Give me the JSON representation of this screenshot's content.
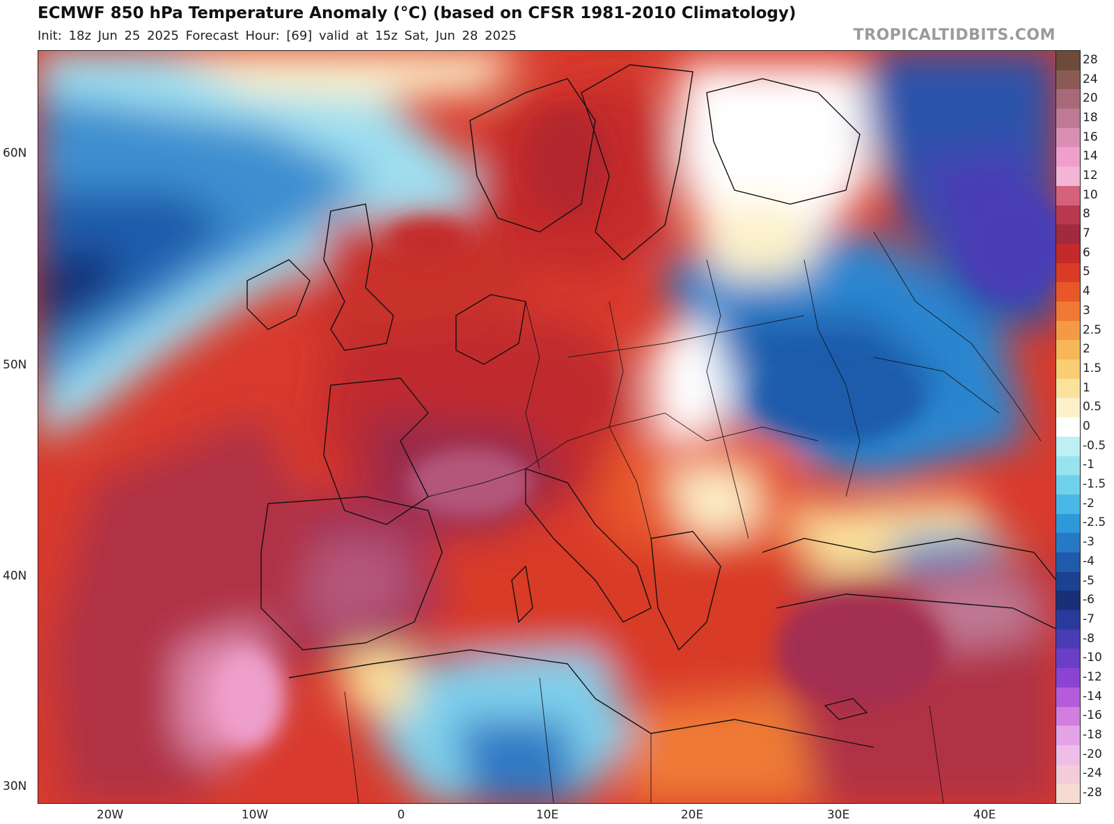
{
  "header": {
    "title": "ECMWF 850 hPa Temperature Anomaly (°C) (based on CFSR 1981-2010 Climatology)",
    "subtitle": "Init: 18z Jun 25 2025   Forecast Hour: [69]   valid at 15z Sat, Jun 28 2025",
    "brand": "TROPICALTIDBITS.COM"
  },
  "axes": {
    "lat_labels": [
      "60N",
      "50N",
      "40N",
      "30N"
    ],
    "lon_labels": [
      "20W",
      "10W",
      "0",
      "10E",
      "20E",
      "30E",
      "40E"
    ]
  },
  "colorbar": {
    "labels": [
      "28",
      "24",
      "20",
      "18",
      "16",
      "14",
      "12",
      "10",
      "8",
      "7",
      "6",
      "5",
      "4",
      "3",
      "2.5",
      "2",
      "1.5",
      "1",
      "0.5",
      "0",
      "-0.5",
      "-1",
      "-1.5",
      "-2",
      "-2.5",
      "-3",
      "-4",
      "-5",
      "-6",
      "-7",
      "-8",
      "-10",
      "-12",
      "-14",
      "-16",
      "-18",
      "-20",
      "-24",
      "-28"
    ],
    "colors": [
      "#6e4a3a",
      "#8c5a55",
      "#a86a78",
      "#c07a96",
      "#d98fb3",
      "#ee9fcb",
      "#f3b4d6",
      "#d4627a",
      "#b9384e",
      "#a12a3e",
      "#c42a2a",
      "#da3b26",
      "#e8572a",
      "#f07a35",
      "#f49a45",
      "#f7b657",
      "#f9cd74",
      "#fbe29c",
      "#fdf1c9",
      "#ffffff",
      "#bfeff5",
      "#98e3f0",
      "#6fd1ec",
      "#4ab8e6",
      "#2e98d8",
      "#2679c4",
      "#1f5bab",
      "#1a4291",
      "#173078",
      "#2a3a9c",
      "#4a3cb5",
      "#6a3ec6",
      "#8a44d2",
      "#b55bdc",
      "#d27ee0",
      "#e3a3e6",
      "#eebde8",
      "#f3ccd8",
      "#f6dbd0"
    ]
  },
  "map_colors": {
    "ocean_hot": "#a12a3e",
    "warm": "#da3b26",
    "pink": "#ee9fcb",
    "cold": "#1f5bab",
    "neutral": "#ffffff"
  }
}
